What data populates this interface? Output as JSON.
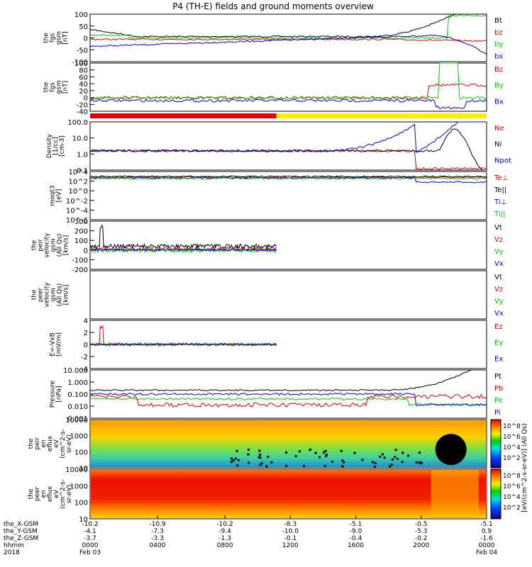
{
  "title": "P4 (TH-E) fields and ground moments overview",
  "colors": {
    "black": "#000000",
    "red": "#e00000",
    "green": "#00cc00",
    "blue": "#0000e0",
    "yellow": "#ffee00"
  },
  "bottom_axis": {
    "rows": [
      {
        "label": "the_X-GSM",
        "values": [
          "-10.2",
          "-10.9",
          "-10.2",
          "-8.3",
          "-5.1",
          "-0.5",
          "-5.1"
        ]
      },
      {
        "label": "the_Y-GSM",
        "values": [
          "-4.1",
          "-7.3",
          "-9.4",
          "-10.0",
          "-9.0",
          "-5.3",
          "0.9"
        ]
      },
      {
        "label": "the_Z-GSM",
        "values": [
          "-3.7",
          "-3.3",
          "-1.3",
          "-0.1",
          "-0.4",
          "-0.2",
          "-1.6"
        ]
      },
      {
        "label": "hhmm",
        "values": [
          "0000",
          "0400",
          "0800",
          "1200",
          "1600",
          "2000",
          "0000"
        ]
      },
      {
        "label": "2018",
        "values": [
          "Feb 03",
          "",
          "",
          "",
          "",
          "",
          "Feb 04"
        ]
      }
    ]
  },
  "spectrogram_colorbar": {
    "label": "[eV/(cm^2-s-sr-eV)] (All Qs)",
    "ticks": [
      "10^8",
      "10^6",
      "10^4",
      "10^2"
    ]
  },
  "chart_data": [
    {
      "type": "line",
      "panel": "fgs_gsm",
      "ylabel": [
        "the",
        "fgs",
        "gsm",
        "[nT]"
      ],
      "ylim": [
        -100,
        100
      ],
      "yticks": [
        "100",
        "50",
        "0",
        "-50",
        "-100"
      ],
      "legend": [
        "Bt",
        "bz",
        "by",
        "bx"
      ]
    },
    {
      "type": "line",
      "panel": "fgs_dsl",
      "ylabel": [
        "the",
        "fgs",
        "gsm",
        "[nT]"
      ],
      "ylim": [
        -40,
        100
      ],
      "yticks": [
        "100",
        "80",
        "60",
        "40",
        "20",
        "0",
        "-20",
        "-40"
      ],
      "legend": [
        "Bz",
        "By",
        "Bx"
      ]
    },
    {
      "type": "line",
      "panel": "density",
      "ylabel": [
        "Density",
        "[1/cc]",
        "[cm-3]"
      ],
      "ylim_log": [
        0.1,
        100
      ],
      "yticks": [
        "100.0",
        "10.0",
        "1.0",
        "0.1"
      ],
      "legend": [
        "Ne",
        "Ni",
        "Npot"
      ]
    },
    {
      "type": "line",
      "panel": "temperature",
      "ylabel": [
        "moqt3",
        "[eV]"
      ],
      "yticks": [
        "10^4",
        "10^2",
        "10^0",
        "10^-2",
        "10^-4",
        "10^-6"
      ],
      "legend": [
        "Te⊥",
        "Te||",
        "Ti⊥",
        "Ti||"
      ]
    },
    {
      "type": "line",
      "panel": "peir_velocity",
      "ylabel": [
        "the",
        "peir",
        "velocity",
        "gsm",
        "(All Qs)",
        "[km/s]"
      ],
      "ylim": [
        -200,
        300
      ],
      "yticks": [
        "300",
        "200",
        "100",
        "0",
        "-100",
        "-200"
      ],
      "legend": [
        "Vt",
        "Vz",
        "Vy",
        "Vx"
      ]
    },
    {
      "type": "line",
      "panel": "peer_velocity",
      "ylabel": [
        "the",
        "peer",
        "velocity",
        "gsm",
        "(All Qs)",
        "[km/s]"
      ],
      "ylim": [
        -200,
        300
      ],
      "yticks": [],
      "legend": [
        "Vt",
        "Vz",
        "Vy",
        "Vx"
      ]
    },
    {
      "type": "line",
      "panel": "efield",
      "ylabel": [
        "E=-VxB",
        "[mV/m]"
      ],
      "ylim": [
        -4,
        4
      ],
      "yticks": [
        "4",
        "2",
        "0",
        "-2",
        "-4"
      ],
      "legend": [
        "Ez",
        "Ey",
        "Ex"
      ]
    },
    {
      "type": "line",
      "panel": "pressure",
      "ylabel": [
        "Pressure",
        "[nPa]"
      ],
      "ylim_log": [
        0.001,
        10
      ],
      "yticks": [
        "10.000",
        "1.000",
        "0.100",
        "0.010",
        "0.001"
      ],
      "legend": [
        "Pt",
        "Pb",
        "Pe",
        "Pi"
      ]
    },
    {
      "type": "heatmap",
      "panel": "peir_spectrogram",
      "ylabel": [
        "the",
        "peir",
        "en",
        "eflux",
        "eV",
        "(cm^2-s-",
        "sr-eV)"
      ],
      "yticks": [
        "10000",
        "1000",
        "100",
        "10"
      ]
    },
    {
      "type": "heatmap",
      "panel": "peer_spectrogram",
      "ylabel": [
        "the",
        "peer",
        "en",
        "eflux",
        "eV",
        "(cm^2-s-",
        "sr-eV)"
      ],
      "yticks": [
        "10000",
        "1000",
        "100",
        "10"
      ]
    }
  ]
}
